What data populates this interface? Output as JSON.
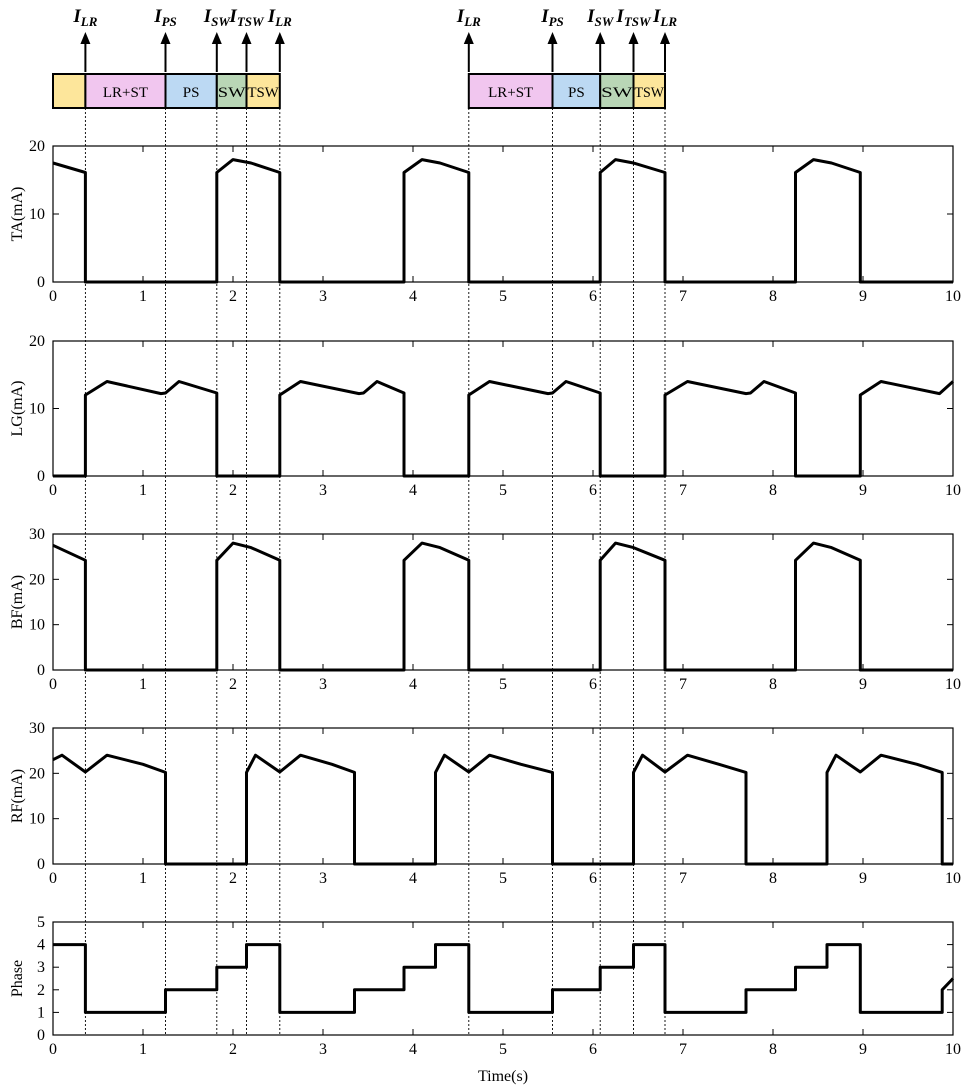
{
  "chart_data": [
    {
      "type": "line",
      "ylabel": "TA(mA)",
      "xlim": [
        0,
        10
      ],
      "ylim": [
        0,
        20
      ],
      "xticks": [
        "0",
        "1",
        "2",
        "3",
        "4",
        "5",
        "6",
        "7",
        "8",
        "9",
        "10"
      ],
      "yticks": [
        "0",
        "10",
        "20"
      ],
      "series": [
        {
          "x": [
            0,
            0.36,
            0.36,
            1.82,
            1.82,
            2.0,
            2.2,
            2.52,
            2.52,
            3.9,
            3.9,
            4.1,
            4.3,
            4.62,
            4.62,
            6.08,
            6.08,
            6.25,
            6.45,
            6.8,
            6.8,
            8.25,
            8.25,
            8.45,
            8.65,
            8.97,
            8.97,
            10
          ],
          "y": [
            17.5,
            16.1,
            0,
            0,
            16.1,
            18,
            17.5,
            16.1,
            0,
            0,
            16.1,
            18,
            17.5,
            16.1,
            0,
            0,
            16.1,
            18,
            17.5,
            16.1,
            0,
            0,
            16.1,
            18,
            17.5,
            16.1,
            0,
            0
          ]
        }
      ]
    },
    {
      "type": "line",
      "ylabel": "LG(mA)",
      "xlim": [
        0,
        10
      ],
      "ylim": [
        0,
        20
      ],
      "xticks": [
        "0",
        "1",
        "2",
        "3",
        "4",
        "5",
        "6",
        "7",
        "8",
        "9",
        "10"
      ],
      "yticks": [
        "0",
        "10",
        "20"
      ],
      "series": [
        {
          "x": [
            0,
            0.36,
            0.36,
            0.6,
            1.2,
            1.25,
            1.4,
            1.82,
            1.82,
            2.52,
            2.52,
            2.75,
            3.4,
            3.45,
            3.6,
            3.9,
            3.9,
            4.62,
            4.62,
            4.85,
            5.5,
            5.55,
            5.7,
            6.08,
            6.08,
            6.8,
            6.8,
            7.05,
            7.7,
            7.75,
            7.9,
            8.25,
            8.25,
            8.97,
            8.97,
            9.2,
            9.85,
            10
          ],
          "y": [
            0,
            0,
            12,
            14,
            12.2,
            12.3,
            14,
            12.3,
            0,
            0,
            12,
            14,
            12.2,
            12.3,
            14,
            12.3,
            0,
            0,
            12,
            14,
            12.2,
            12.3,
            14,
            12.3,
            0,
            0,
            12,
            14,
            12.2,
            12.3,
            14,
            12.3,
            0,
            0,
            12,
            14,
            12.2,
            14
          ]
        }
      ]
    },
    {
      "type": "line",
      "ylabel": "BF(mA)",
      "xlim": [
        0,
        10
      ],
      "ylim": [
        0,
        30
      ],
      "xticks": [
        "0",
        "1",
        "2",
        "3",
        "4",
        "5",
        "6",
        "7",
        "8",
        "9",
        "10"
      ],
      "yticks": [
        "0",
        "10",
        "20",
        "30"
      ],
      "series": [
        {
          "x": [
            0,
            0.36,
            0.36,
            1.82,
            1.82,
            2.0,
            2.2,
            2.52,
            2.52,
            3.9,
            3.9,
            4.1,
            4.3,
            4.62,
            4.62,
            6.08,
            6.08,
            6.25,
            6.45,
            6.8,
            6.8,
            8.25,
            8.25,
            8.45,
            8.65,
            8.97,
            8.97,
            10
          ],
          "y": [
            27.5,
            24.2,
            0,
            0,
            24.2,
            28,
            27,
            24.2,
            0,
            0,
            24.2,
            28,
            27,
            24.2,
            0,
            0,
            24.2,
            28,
            27,
            24.2,
            0,
            0,
            24.2,
            28,
            27,
            24.2,
            0,
            0
          ]
        }
      ]
    },
    {
      "type": "line",
      "ylabel": "RF(mA)",
      "xlim": [
        0,
        10
      ],
      "ylim": [
        0,
        30
      ],
      "xticks": [
        "0",
        "1",
        "2",
        "3",
        "4",
        "5",
        "6",
        "7",
        "8",
        "9",
        "10"
      ],
      "yticks": [
        "0",
        "10",
        "20",
        "30"
      ],
      "series": [
        {
          "x": [
            0,
            0.1,
            0.36,
            0.6,
            1.0,
            1.25,
            1.25,
            2.15,
            2.15,
            2.25,
            2.52,
            2.75,
            3.1,
            3.35,
            3.35,
            4.25,
            4.25,
            4.35,
            4.62,
            4.85,
            5.2,
            5.55,
            5.55,
            6.45,
            6.45,
            6.55,
            6.8,
            7.05,
            7.4,
            7.7,
            7.7,
            8.6,
            8.6,
            8.7,
            8.97,
            9.2,
            9.6,
            9.88,
            9.88,
            10
          ],
          "y": [
            23,
            24,
            20.3,
            24,
            22,
            20.2,
            0,
            0,
            20.2,
            24,
            20.3,
            24,
            22,
            20.2,
            0,
            0,
            20.2,
            24,
            20.3,
            24,
            22,
            20.2,
            0,
            0,
            20.2,
            24,
            20.3,
            24,
            22,
            20.2,
            0,
            0,
            20.2,
            24,
            20.3,
            24,
            22,
            20.2,
            0,
            0
          ]
        }
      ]
    },
    {
      "type": "line",
      "ylabel": "Phase",
      "xlabel": "Time(s)",
      "xlim": [
        0,
        10
      ],
      "ylim": [
        0,
        5
      ],
      "xticks": [
        "0",
        "1",
        "2",
        "3",
        "4",
        "5",
        "6",
        "7",
        "8",
        "9",
        "10"
      ],
      "yticks": [
        "0",
        "1",
        "2",
        "3",
        "4",
        "5"
      ],
      "series": [
        {
          "x": [
            0,
            0.36,
            0.36,
            1.25,
            1.25,
            1.82,
            1.82,
            2.15,
            2.15,
            2.52,
            2.52,
            3.35,
            3.35,
            3.9,
            3.9,
            4.25,
            4.25,
            4.62,
            4.62,
            5.55,
            5.55,
            6.08,
            6.08,
            6.45,
            6.45,
            6.8,
            6.8,
            7.7,
            7.7,
            8.25,
            8.25,
            8.6,
            8.6,
            8.97,
            8.97,
            9.88,
            9.88,
            10
          ],
          "y": [
            4,
            4,
            1,
            1,
            2,
            2,
            3,
            3,
            4,
            4,
            1,
            1,
            2,
            2,
            3,
            3,
            4,
            4,
            1,
            1,
            2,
            2,
            3,
            3,
            4,
            4,
            1,
            1,
            2,
            2,
            3,
            3,
            4,
            4,
            1,
            1,
            2,
            2.5
          ]
        }
      ]
    }
  ],
  "events": {
    "lr": {
      "main": "I",
      "sub": "LR"
    },
    "ps": {
      "main": "I",
      "sub": "PS"
    },
    "sw": {
      "main": "I",
      "sub": "SW"
    },
    "tsw": {
      "main": "I",
      "sub": "TSW"
    }
  },
  "event_times": [
    0.36,
    1.25,
    1.82,
    2.15,
    2.52,
    4.62,
    5.55,
    6.08,
    6.45,
    6.8
  ],
  "phase_bars": [
    [
      {
        "start": 0.0,
        "end": 0.36,
        "label": "",
        "color": "#fde69b"
      },
      {
        "start": 0.36,
        "end": 1.25,
        "label": "LR+ST",
        "color": "#f1c6ef"
      },
      {
        "start": 1.25,
        "end": 1.82,
        "label": "PS",
        "color": "#bcd9f3"
      },
      {
        "start": 1.82,
        "end": 2.15,
        "label": "SW",
        "color": "#b9d6b6"
      },
      {
        "start": 2.15,
        "end": 2.52,
        "label": "TSW",
        "color": "#fde69b"
      }
    ],
    [
      {
        "start": 4.62,
        "end": 5.55,
        "label": "LR+ST",
        "color": "#f1c6ef"
      },
      {
        "start": 5.55,
        "end": 6.08,
        "label": "PS",
        "color": "#bcd9f3"
      },
      {
        "start": 6.08,
        "end": 6.45,
        "label": "SW",
        "color": "#b9d6b6"
      },
      {
        "start": 6.45,
        "end": 6.8,
        "label": "TSW",
        "color": "#fde69b"
      }
    ]
  ]
}
